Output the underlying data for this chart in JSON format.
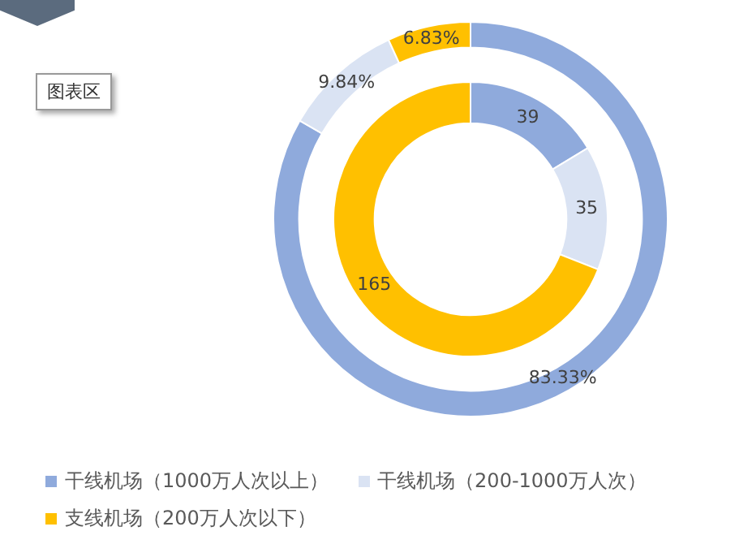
{
  "chart_data": {
    "type": "donut",
    "categories": [
      "干线机场（1000万人次以上）",
      "干线机场（200-1000万人次）",
      "支线机场（200万人次以下）"
    ],
    "series": [
      {
        "values": [
          83.33,
          9.84,
          6.83
        ],
        "colors": [
          "#8faadc",
          "#dae3f3",
          "#ffc000"
        ],
        "value_labels": [
          "83.33%",
          "9.84%",
          "6.83%"
        ]
      },
      {
        "values": [
          39,
          35,
          165
        ],
        "colors": [
          "#8faadc",
          "#dae3f3",
          "#ffc000"
        ],
        "value_labels": [
          "39",
          "35",
          "165"
        ]
      }
    ],
    "annotations": [
      "图表区"
    ],
    "legend": "bottom"
  }
}
